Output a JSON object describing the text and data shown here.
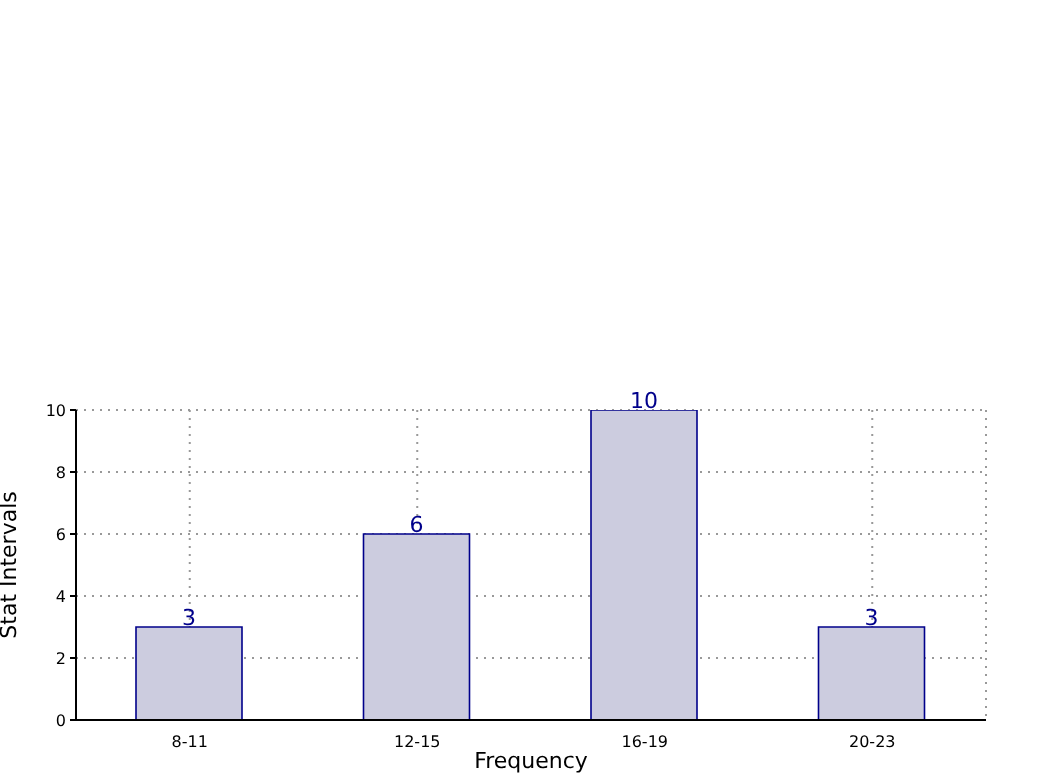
{
  "chart_data": {
    "type": "bar",
    "xlabel": "Frequency",
    "ylabel": "Stat Intervals",
    "categories": [
      "8-11",
      "12-15",
      "16-19",
      "20-23"
    ],
    "values": [
      3,
      6,
      10,
      3
    ],
    "color": "#ccccdf",
    "ylim": [
      0,
      10
    ],
    "yticks": [
      0,
      2,
      4,
      6,
      8,
      10
    ],
    "grid": true,
    "data_labels": true
  }
}
